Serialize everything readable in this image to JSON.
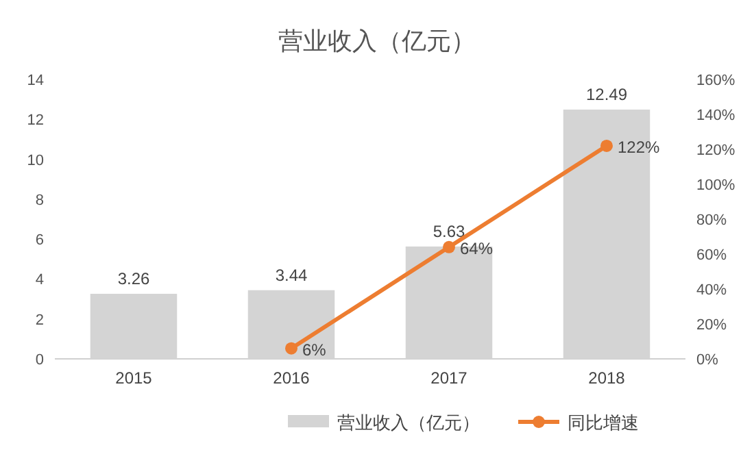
{
  "chart_data": {
    "type": "bar",
    "title": "营业收入（亿元）",
    "categories": [
      "2015",
      "2016",
      "2017",
      "2018"
    ],
    "series": [
      {
        "name": "营业收入（亿元）",
        "color": "#d4d4d4",
        "values": [
          3.26,
          3.44,
          5.63,
          12.49
        ],
        "value_labels": [
          "3.26",
          "3.44",
          "5.63",
          "12.49"
        ]
      },
      {
        "name": "同比增速",
        "type": "line",
        "axis": "y2",
        "color": "#ed7d31",
        "values": [
          null,
          6,
          64,
          122
        ],
        "value_labels": [
          null,
          "6%",
          "64%",
          "122%"
        ]
      }
    ],
    "ylim": [
      0,
      14
    ],
    "yticks": [
      0,
      2,
      4,
      6,
      8,
      10,
      12,
      14
    ],
    "y2lim": [
      0,
      160
    ],
    "y2ticks": [
      {
        "value": 0,
        "label": "0%"
      },
      {
        "value": 20,
        "label": "20%"
      },
      {
        "value": 40,
        "label": "40%"
      },
      {
        "value": 60,
        "label": "60%"
      },
      {
        "value": 80,
        "label": "80%"
      },
      {
        "value": 100,
        "label": "100%"
      },
      {
        "value": 120,
        "label": "120%"
      },
      {
        "value": 140,
        "label": "140%"
      },
      {
        "value": 160,
        "label": "160%"
      }
    ],
    "marker": "circle",
    "legend": "bottom"
  }
}
